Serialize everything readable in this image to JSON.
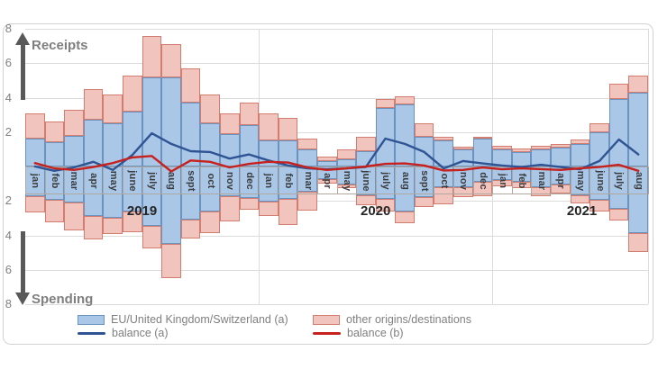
{
  "labels": {
    "receipts": "Receipts",
    "spending": "Spending"
  },
  "colors": {
    "bar_eu_fill": "#aac7e7",
    "bar_eu_border": "#6b93c0",
    "bar_other_fill": "#f2c4be",
    "bar_other_border": "#d37c70",
    "line_balance_a": "#2f5494",
    "line_balance_b": "#c7211e",
    "grid": "#dcdcdc",
    "axis_text": "#808080",
    "month_text": "#3c3c3c",
    "year_text": "#262626",
    "arrow": "#595959"
  },
  "chart_data": {
    "type": "combo_stacked_bar_line",
    "months": [
      "jan",
      "feb",
      "mar",
      "apr",
      "may",
      "june",
      "july",
      "aug",
      "sept",
      "oct",
      "nov",
      "dec",
      "jan",
      "feb",
      "mar",
      "apr",
      "may",
      "june",
      "july",
      "aug",
      "sept",
      "oct",
      "nov",
      "dec",
      "jan",
      "feb",
      "mar",
      "apr",
      "may",
      "june",
      "july",
      "aug"
    ],
    "years": [
      {
        "label": "2019",
        "boundary": 6
      },
      {
        "label": "2020",
        "boundary": 18
      },
      {
        "label": "2021",
        "boundary": 28.6
      }
    ],
    "y_axis": {
      "max": 8,
      "min": -8,
      "tick_step": 2,
      "tick_values": [
        8,
        6,
        4,
        2,
        -2,
        -4,
        -6,
        -8
      ],
      "labels_shown_as_absolute": true,
      "positive_caption": "Receipts",
      "negative_caption": "Spending",
      "grid": true
    },
    "series": [
      {
        "name": "EU/United Kingdom/Switzerland (a)",
        "fill": "#aac7e7",
        "border": "#6b93c0",
        "receipts": [
          1.6,
          1.4,
          1.8,
          2.7,
          2.5,
          3.2,
          5.2,
          5.2,
          3.7,
          2.5,
          1.9,
          2.4,
          1.5,
          1.5,
          1.0,
          0.3,
          0.4,
          0.9,
          3.4,
          3.6,
          1.7,
          1.5,
          1.0,
          1.6,
          1.0,
          0.85,
          1.0,
          1.1,
          1.3,
          2.0,
          3.9,
          4.3
        ],
        "spending": [
          -1.75,
          -1.95,
          -2.1,
          -2.9,
          -3.0,
          -2.6,
          -3.45,
          -4.5,
          -3.1,
          -2.6,
          -1.75,
          -1.85,
          -2.05,
          -1.9,
          -1.45,
          -0.75,
          -1.05,
          -1.65,
          -1.9,
          -2.6,
          -1.8,
          -1.2,
          -1.2,
          -0.9,
          -0.8,
          -0.9,
          -1.2,
          -1.05,
          -1.65,
          -1.95,
          -2.45,
          -3.85
        ]
      },
      {
        "name": "other origins/destinations",
        "fill": "#f2c4be",
        "border": "#d37c70",
        "receipts": [
          1.5,
          1.2,
          1.5,
          1.8,
          1.7,
          2.1,
          2.4,
          1.9,
          2.0,
          1.7,
          1.2,
          1.3,
          1.6,
          1.3,
          0.6,
          0.3,
          0.6,
          0.8,
          0.5,
          0.5,
          0.8,
          0.2,
          0.15,
          0.15,
          0.2,
          0.2,
          0.2,
          0.2,
          0.25,
          0.5,
          0.9,
          1.0
        ],
        "spending": [
          -0.9,
          -1.3,
          -1.6,
          -1.35,
          -0.9,
          -1.2,
          -1.3,
          -2.0,
          -1.1,
          -1.25,
          -1.45,
          -0.65,
          -0.85,
          -1.5,
          -1.1,
          -0.25,
          -0.2,
          -0.6,
          -0.7,
          -0.7,
          -0.55,
          -1.0,
          -0.6,
          -0.8,
          -0.35,
          -0.35,
          -0.55,
          -0.5,
          -0.5,
          -0.65,
          -0.7,
          -1.1
        ]
      }
    ],
    "lines": [
      {
        "name": "balance (a)",
        "color": "#2f5494",
        "values": [
          0.0,
          -0.25,
          -0.05,
          0.27,
          -0.2,
          0.67,
          1.93,
          1.31,
          0.89,
          0.84,
          0.46,
          0.7,
          0.35,
          0.06,
          -0.11,
          -0.16,
          -0.11,
          -0.03,
          1.62,
          1.31,
          0.84,
          -0.11,
          0.32,
          0.18,
          0.06,
          -0.03,
          0.1,
          -0.03,
          -0.16,
          0.32,
          1.57,
          0.7
        ]
      },
      {
        "name": "balance (b)",
        "color": "#c7211e",
        "values": [
          0.2,
          -0.11,
          -0.2,
          -0.03,
          0.2,
          0.53,
          0.61,
          -0.29,
          0.35,
          0.27,
          -0.05,
          0.15,
          0.27,
          0.23,
          -0.06,
          -0.2,
          -0.11,
          0.0,
          0.15,
          0.18,
          0.06,
          -0.23,
          -0.2,
          -0.06,
          -0.16,
          -0.11,
          -0.15,
          -0.2,
          -0.11,
          -0.03,
          0.1,
          -0.25
        ]
      }
    ],
    "legend_position": "bottom"
  }
}
